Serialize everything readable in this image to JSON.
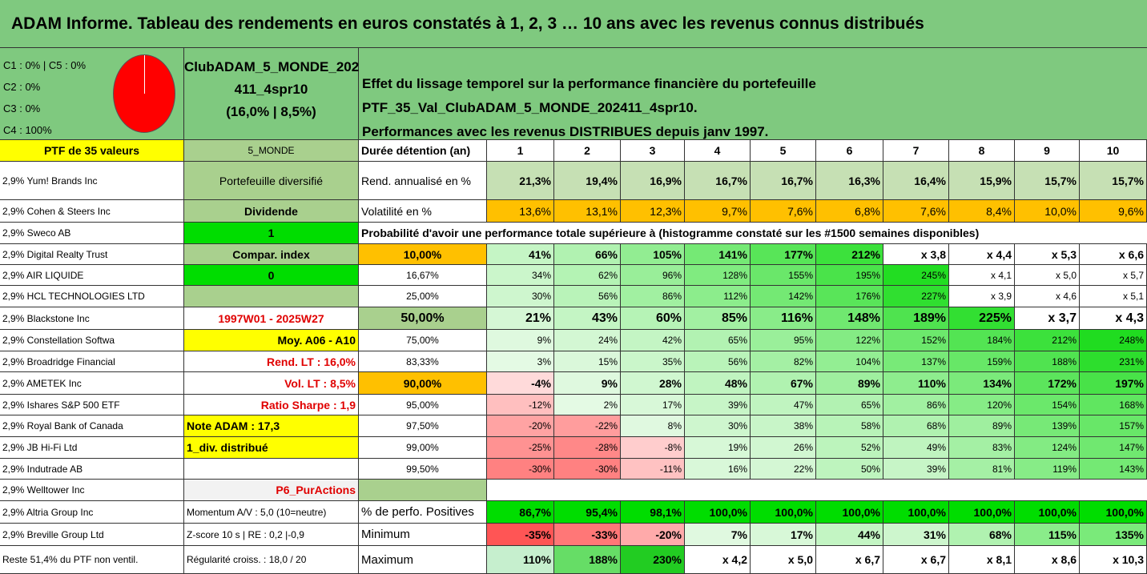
{
  "title": "ADAM Informe. Tableau des rendements en euros constatés à 1, 2, 3 … 10 ans avec les revenus connus distribués",
  "allocation": [
    "C1 : 0% | C5 : 0%",
    "C2 : 0%",
    "C3 : 0%",
    "C4 : 100%"
  ],
  "pie_slices": [
    {
      "label": "C4",
      "value": 100,
      "color": "#ff0000"
    }
  ],
  "portfolio_name": [
    "ClubADAM_5_MONDE_202",
    "411_4spr10",
    "(16,0% | 8,5%)"
  ],
  "effect": [
    "Effet du lissage temporel sur la performance financière du portefeuille PTF_35_Val_ClubADAM_5_MONDE_202411_4spr10.",
    "Performances avec les revenus DISTRIBUES depuis janv 1997."
  ],
  "colors": {
    "header_green": "#7fc97f",
    "yellow": "#ffff00",
    "bright_green": "#00cc00",
    "orange": "#ffc000",
    "gray_green": "#a9d08e"
  },
  "holdings": [
    "PTF de 35 valeurs",
    "2,9% Yum! Brands Inc",
    "2,9% Cohen & Steers Inc",
    "2,9% Sweco AB",
    "2,9% Digital Realty Trust",
    "2,9% AIR LIQUIDE",
    "2,9% HCL TECHNOLOGIES LTD",
    "2,9% Blackstone Inc",
    "2,9% Constellation Softwa",
    "2,9% Broadridge Financial",
    "2,9% AMETEK Inc",
    "2,9% Ishares S&P 500 ETF",
    "2,9% Royal Bank of Canada",
    "2,9% JB Hi-Fi Ltd",
    "2,9% Indutrade AB",
    "2,9% Welltower Inc",
    "2,9% Altria Group Inc",
    "2,9% Breville Group Ltd",
    "Reste 51,4% du PTF non ventil."
  ],
  "info": [
    "5_MONDE",
    "Portefeuille diversifié",
    "Dividende",
    "1",
    "Compar. index",
    "0",
    "",
    "1997W01 - 2025W27",
    "Moy. A06 - A10",
    "Rend. LT : 16,0%",
    "Vol. LT : 8,5%",
    "Ratio Sharpe : 1,9",
    "Note ADAM : 17,3",
    "1_div. distribué",
    "",
    "P6_PurActions",
    "Momentum A/V : 5,0 (10=neutre)",
    "Z-score 10 s | RE : 0,2 |-0,9",
    "Régularité croiss. : 18,0 / 20"
  ],
  "header": {
    "label": "Durée détention (an)",
    "years": [
      "1",
      "2",
      "3",
      "4",
      "5",
      "6",
      "7",
      "8",
      "9",
      "10"
    ]
  },
  "rend": {
    "label": "Rend. annualisé en %",
    "values": [
      "21,3%",
      "19,4%",
      "16,9%",
      "16,7%",
      "16,7%",
      "16,3%",
      "16,4%",
      "15,9%",
      "15,7%",
      "15,7%"
    ]
  },
  "vol": {
    "label": "Volatilité en %",
    "values": [
      "13,6%",
      "13,1%",
      "12,3%",
      "9,7%",
      "7,6%",
      "6,8%",
      "7,6%",
      "8,4%",
      "10,0%",
      "9,6%"
    ]
  },
  "prob_title": "Probabilité d'avoir une performance totale supérieure à (histogramme constaté sur les #1500 semaines disponibles)",
  "quantiles": [
    {
      "p": "10,00%",
      "v": [
        "41%",
        "66%",
        "105%",
        "141%",
        "177%",
        "212%",
        "x 3,8",
        "x 4,4",
        "x 5,3",
        "x 6,6"
      ]
    },
    {
      "p": "16,67%",
      "v": [
        "34%",
        "62%",
        "96%",
        "128%",
        "155%",
        "195%",
        "245%",
        "x 4,1",
        "x 5,0",
        "x 5,7"
      ]
    },
    {
      "p": "25,00%",
      "v": [
        "30%",
        "56%",
        "86%",
        "112%",
        "142%",
        "176%",
        "227%",
        "x 3,9",
        "x 4,6",
        "x 5,1"
      ]
    },
    {
      "p": "50,00%",
      "v": [
        "21%",
        "43%",
        "60%",
        "85%",
        "116%",
        "148%",
        "189%",
        "225%",
        "x 3,7",
        "x 4,3"
      ]
    },
    {
      "p": "75,00%",
      "v": [
        "9%",
        "24%",
        "42%",
        "65%",
        "95%",
        "122%",
        "152%",
        "184%",
        "212%",
        "248%"
      ]
    },
    {
      "p": "83,33%",
      "v": [
        "3%",
        "15%",
        "35%",
        "56%",
        "82%",
        "104%",
        "137%",
        "159%",
        "188%",
        "231%"
      ]
    },
    {
      "p": "90,00%",
      "v": [
        "-4%",
        "9%",
        "28%",
        "48%",
        "67%",
        "89%",
        "110%",
        "134%",
        "172%",
        "197%"
      ]
    },
    {
      "p": "95,00%",
      "v": [
        "-12%",
        "2%",
        "17%",
        "39%",
        "47%",
        "65%",
        "86%",
        "120%",
        "154%",
        "168%"
      ]
    },
    {
      "p": "97,50%",
      "v": [
        "-20%",
        "-22%",
        "8%",
        "30%",
        "38%",
        "58%",
        "68%",
        "89%",
        "139%",
        "157%"
      ]
    },
    {
      "p": "99,00%",
      "v": [
        "-25%",
        "-28%",
        "-8%",
        "19%",
        "26%",
        "52%",
        "49%",
        "83%",
        "124%",
        "147%"
      ]
    },
    {
      "p": "99,50%",
      "v": [
        "-30%",
        "-30%",
        "-11%",
        "16%",
        "22%",
        "50%",
        "39%",
        "81%",
        "119%",
        "143%"
      ]
    }
  ],
  "stats": [
    {
      "label": "% de perfo. Positives",
      "v": [
        "86,7%",
        "95,4%",
        "98,1%",
        "100,0%",
        "100,0%",
        "100,0%",
        "100,0%",
        "100,0%",
        "100,0%",
        "100,0%"
      ]
    },
    {
      "label": "Minimum",
      "v": [
        "-35%",
        "-33%",
        "-20%",
        "7%",
        "17%",
        "44%",
        "31%",
        "68%",
        "115%",
        "135%"
      ]
    },
    {
      "label": "Maximum",
      "v": [
        "110%",
        "188%",
        "230%",
        "x 4,2",
        "x 5,0",
        "x 6,7",
        "x 6,7",
        "x 8,1",
        "x 8,6",
        "x 10,3"
      ]
    }
  ]
}
